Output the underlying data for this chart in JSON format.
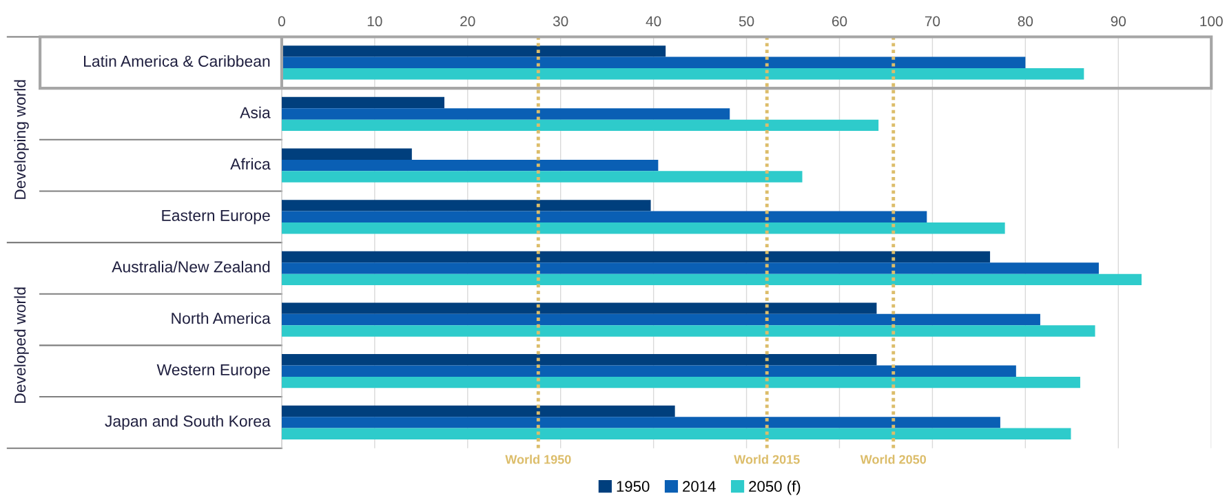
{
  "chart_data": {
    "type": "bar",
    "orientation": "horizontal",
    "categories": [
      "Latin America & Caribbean",
      "Asia",
      "Africa",
      "Eastern Europe",
      "Australia/New Zealand",
      "North America",
      "Western Europe",
      "Japan and South Korea"
    ],
    "series": [
      {
        "name": "1950",
        "color": "#003f7d",
        "values": [
          41.3,
          17.5,
          14.0,
          39.7,
          76.2,
          64.0,
          64.0,
          42.3
        ]
      },
      {
        "name": "2014",
        "color": "#0a5fb4",
        "values": [
          80.0,
          48.2,
          40.5,
          69.4,
          87.9,
          81.6,
          79.0,
          77.3
        ]
      },
      {
        "name": "2050 (f)",
        "color": "#2ecbcb",
        "values": [
          86.3,
          64.2,
          56.0,
          77.8,
          92.5,
          87.5,
          85.9,
          84.9
        ]
      }
    ],
    "xlim": [
      0,
      100
    ],
    "xticks": [
      0,
      10,
      20,
      30,
      40,
      50,
      60,
      70,
      80,
      90,
      100
    ],
    "grid": "x",
    "legend": "bottom",
    "ref_lines": [
      {
        "axis": "x",
        "value": 27.6,
        "label": "World 1950",
        "color": "#dcbd6a",
        "line_style": "dotted"
      },
      {
        "axis": "x",
        "value": 52.2,
        "label": "World 2015",
        "color": "#dcbd6a",
        "line_style": "dotted"
      },
      {
        "axis": "x",
        "value": 65.8,
        "label": "World 2050",
        "color": "#dcbd6a",
        "line_style": "dotted"
      }
    ],
    "annotations": [
      "Developing world",
      "Developed world"
    ]
  }
}
